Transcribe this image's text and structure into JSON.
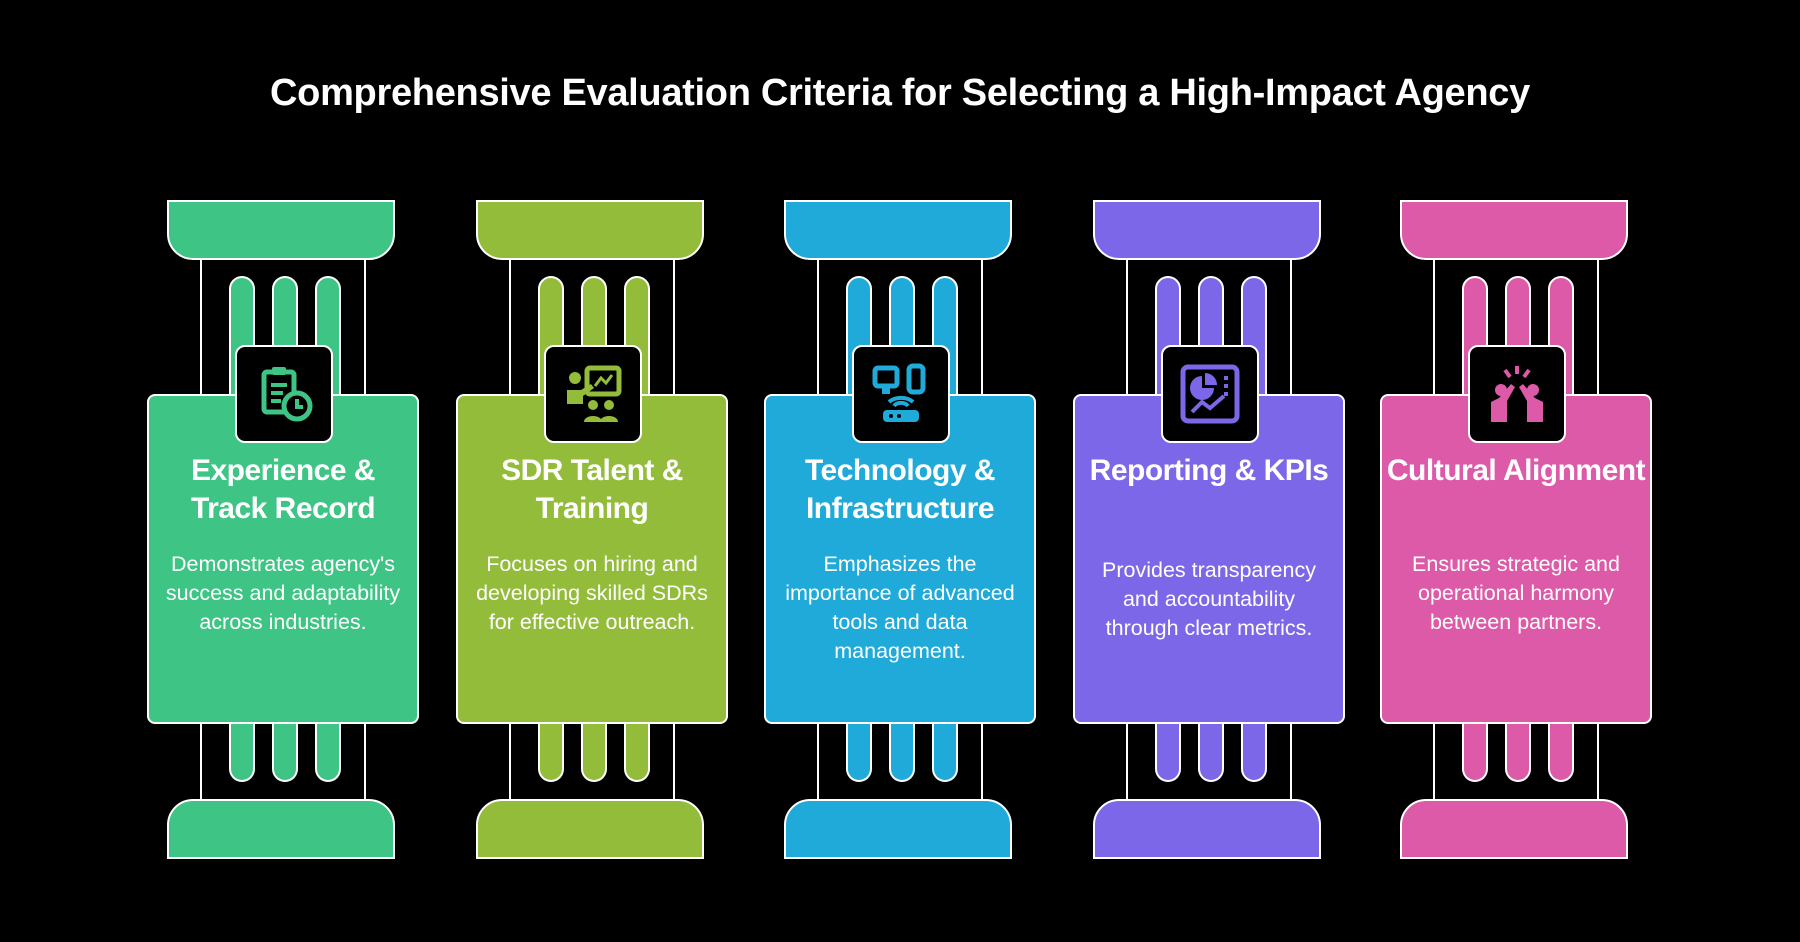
{
  "title": "Comprehensive Evaluation Criteria for Selecting a High-Impact Agency",
  "pillars": [
    {
      "title": "Experience & Track Record",
      "description": "Demonstrates agency's success and adaptability across industries.",
      "color": "#3ec585",
      "icon": "clipboard-clock-icon"
    },
    {
      "title": "SDR Talent & Training",
      "description": "Focuses on hiring and developing skilled SDRs for effective outreach.",
      "color": "#94bc3b",
      "icon": "presentation-team-icon"
    },
    {
      "title": "Technology & Infrastructure",
      "description": "Emphasizes the importance of advanced tools and data management.",
      "color": "#20aad9",
      "icon": "devices-router-icon"
    },
    {
      "title": "Reporting & KPIs",
      "description": "Provides transparency and accountability through clear metrics.",
      "color": "#7c67e8",
      "icon": "dashboard-chart-icon"
    },
    {
      "title": "Cultural Alignment",
      "description": "Ensures strategic and operational harmony between partners.",
      "color": "#dd5aa8",
      "icon": "high-five-icon"
    }
  ]
}
